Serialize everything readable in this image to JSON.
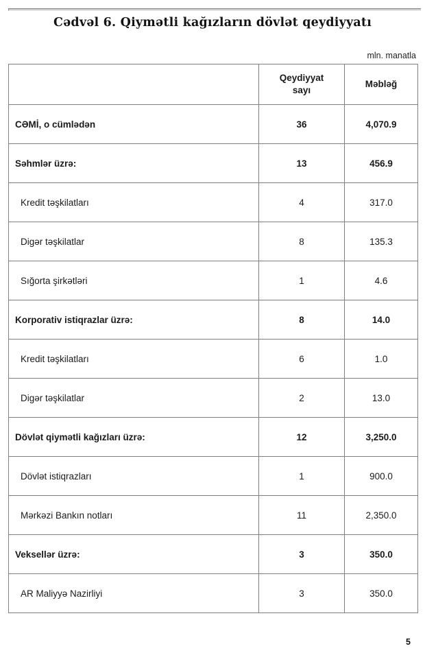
{
  "page": {
    "title": "Cədvəl 6. Qiymətli kağızların dövlət qeydiyyatı",
    "unit_note": "mln. manatla",
    "page_number": "5"
  },
  "table": {
    "headers": {
      "label": "",
      "count": "Qeydiyyat\nsayı",
      "amount": "Məbləğ"
    },
    "rows": [
      {
        "label": "CƏMİ, o cümlədən",
        "count": "36",
        "amount": "4,070.9",
        "category": true,
        "indent": false
      },
      {
        "label": "Səhmlər üzrə:",
        "count": "13",
        "amount": "456.9",
        "category": true,
        "indent": false
      },
      {
        "label": "Kredit təşkilatları",
        "count": "4",
        "amount": "317.0",
        "category": false,
        "indent": true
      },
      {
        "label": "Digər təşkilatlar",
        "count": "8",
        "amount": "135.3",
        "category": false,
        "indent": true
      },
      {
        "label": "Sığorta şirkətləri",
        "count": "1",
        "amount": "4.6",
        "category": false,
        "indent": true
      },
      {
        "label": "Korporativ istiqrazlar üzrə:",
        "count": "8",
        "amount": "14.0",
        "category": true,
        "indent": false
      },
      {
        "label": "Kredit təşkilatları",
        "count": "6",
        "amount": "1.0",
        "category": false,
        "indent": true
      },
      {
        "label": "Digər təşkilatlar",
        "count": "2",
        "amount": "13.0",
        "category": false,
        "indent": true
      },
      {
        "label": "Dövlət qiymətli kağızları üzrə:",
        "count": "12",
        "amount": "3,250.0",
        "category": true,
        "indent": false
      },
      {
        "label": "Dövlət istiqrazları",
        "count": "1",
        "amount": "900.0",
        "category": false,
        "indent": true
      },
      {
        "label": "Mərkəzi Bankın notları",
        "count": "11",
        "amount": "2,350.0",
        "category": false,
        "indent": true
      },
      {
        "label": "Veksellər üzrə:",
        "count": "3",
        "amount": "350.0",
        "category": true,
        "indent": false
      },
      {
        "label": "AR Maliyyə Nazirliyi",
        "count": "3",
        "amount": "350.0",
        "category": false,
        "indent": true
      }
    ]
  },
  "colors": {
    "table_border": "#7f7f7f",
    "text": "#1a1a1a",
    "rule_gray": "#cccccc"
  }
}
